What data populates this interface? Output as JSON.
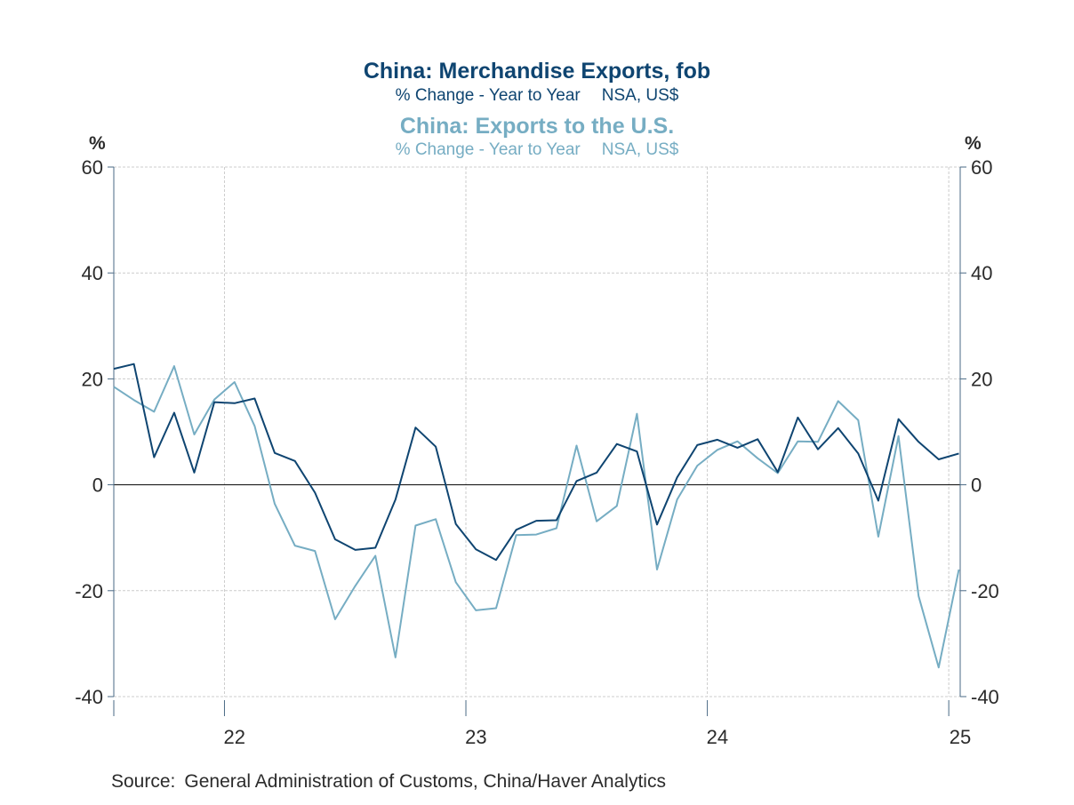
{
  "chart_data": {
    "type": "line",
    "titles": [
      {
        "title": "China: Merchandise Exports, fob",
        "subtitle": [
          "% Change - Year to Year",
          "NSA, US$"
        ],
        "color": "#0f4571"
      },
      {
        "title": "China: Exports to the U.S.",
        "subtitle": [
          "% Change - Year to Year",
          "NSA, US$"
        ],
        "color": "#76adc3"
      }
    ],
    "ylabel_left": "%",
    "ylabel_right": "%",
    "ylim": [
      -40,
      60
    ],
    "yticks": [
      -40,
      -20,
      0,
      20,
      40,
      60
    ],
    "ytick_labels": [
      "-40",
      "-20",
      "0",
      "20",
      "40",
      "60"
    ],
    "x_start": "2021-07",
    "xlim_months": [
      0,
      41.5
    ],
    "x_year_ticks": [
      {
        "label": "22",
        "month": 6
      },
      {
        "label": "23",
        "month": 18
      },
      {
        "label": "24",
        "month": 30
      },
      {
        "label": "25",
        "month": 42
      }
    ],
    "grid": true,
    "series": [
      {
        "name": "China: Merchandise Exports, fob",
        "color": "#0f4571",
        "values": [
          21.9,
          22.8,
          5.2,
          13.6,
          2.3,
          15.6,
          15.4,
          16.3,
          6.0,
          4.5,
          -1.5,
          -10.3,
          -12.3,
          -11.9,
          -2.8,
          10.8,
          7.2,
          -7.4,
          -12.2,
          -14.2,
          -8.5,
          -6.8,
          -6.7,
          0.7,
          2.3,
          7.7,
          6.3,
          -7.5,
          1.4,
          7.5,
          8.5,
          7.0,
          8.6,
          2.4,
          12.7,
          6.7,
          10.7,
          5.9,
          -3.0,
          12.4,
          8.1,
          4.8,
          5.9
        ]
      },
      {
        "name": "China: Exports to the U.S.",
        "color": "#76adc3",
        "values": [
          18.5,
          16.0,
          13.8,
          22.4,
          9.5,
          16.1,
          19.4,
          11.1,
          -3.6,
          -11.5,
          -12.5,
          -25.4,
          -19.1,
          -13.4,
          -32.6,
          -7.7,
          -6.5,
          -18.4,
          -23.7,
          -23.3,
          -9.5,
          -9.4,
          -8.2,
          7.4,
          -6.9,
          -4.0,
          13.4,
          -16.0,
          -2.8,
          3.6,
          6.6,
          8.2,
          5.0,
          2.2,
          8.2,
          8.1,
          15.8,
          12.2,
          -9.8,
          9.2,
          -21.0,
          -34.5,
          -16.0
        ]
      }
    ],
    "source_label": "Source:",
    "source_text": "General Administration of Customs, China/Haver Analytics"
  }
}
